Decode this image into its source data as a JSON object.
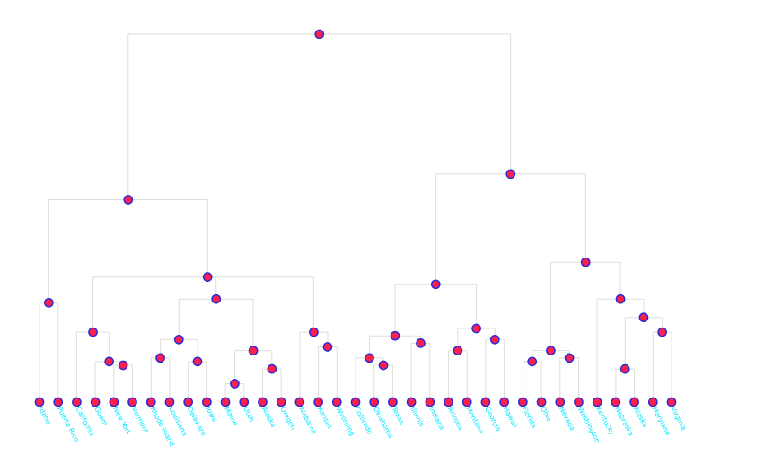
{
  "colors": {
    "link": "#dddddd",
    "node_fill": "#ff1f4b",
    "node_stroke": "#2b2bd6",
    "label": "#00e5ff"
  },
  "tree": {
    "h": 1.0,
    "children": [
      {
        "h": 0.55,
        "children": [
          {
            "h": 0.27,
            "children": [
              {
                "name": "Idaho",
                "h": 0
              },
              {
                "name": "Puerto Rico",
                "h": 0
              }
            ]
          },
          {
            "h": 0.34,
            "children": [
              {
                "h": 0.19,
                "children": [
                  {
                    "name": "California",
                    "h": 0
                  },
                  {
                    "h": 0.11,
                    "children": [
                      {
                        "name": "Guam",
                        "h": 0
                      },
                      {
                        "h": 0.1,
                        "children": [
                          {
                            "name": "New York",
                            "h": 0
                          },
                          {
                            "name": "Vermont",
                            "h": 0
                          }
                        ]
                      }
                    ]
                  }
                ]
              },
              {
                "h": 0.28,
                "children": [
                  {
                    "h": 0.17,
                    "children": [
                      {
                        "h": 0.12,
                        "children": [
                          {
                            "name": "Rhode Island",
                            "h": 0
                          },
                          {
                            "name": "Louisiana",
                            "h": 0
                          }
                        ]
                      },
                      {
                        "h": 0.11,
                        "children": [
                          {
                            "name": "Delaware",
                            "h": 0
                          },
                          {
                            "name": "Iowa",
                            "h": 0
                          }
                        ]
                      }
                    ]
                  },
                  {
                    "h": 0.14,
                    "children": [
                      {
                        "h": 0.05,
                        "children": [
                          {
                            "name": "Maine",
                            "h": 0
                          },
                          {
                            "name": "Utah",
                            "h": 0
                          }
                        ]
                      },
                      {
                        "h": 0.09,
                        "children": [
                          {
                            "name": "Alaska",
                            "h": 0
                          },
                          {
                            "name": "Oregon",
                            "h": 0
                          }
                        ]
                      }
                    ]
                  }
                ]
              },
              {
                "h": 0.19,
                "children": [
                  {
                    "name": "Alabama",
                    "h": 0
                  },
                  {
                    "h": 0.15,
                    "children": [
                      {
                        "name": "Kansas",
                        "h": 0
                      },
                      {
                        "name": "Wyoming",
                        "h": 0
                      }
                    ]
                  }
                ]
              }
            ]
          }
        ]
      },
      {
        "h": 0.62,
        "children": [
          {
            "h": 0.32,
            "children": [
              {
                "h": 0.18,
                "children": [
                  {
                    "h": 0.12,
                    "children": [
                      {
                        "name": "Colorado",
                        "h": 0
                      },
                      {
                        "h": 0.1,
                        "children": [
                          {
                            "name": "Oklahoma",
                            "h": 0
                          },
                          {
                            "name": "Texas",
                            "h": 0
                          }
                        ]
                      }
                    ]
                  },
                  {
                    "h": 0.16,
                    "children": [
                      {
                        "name": "Illinois",
                        "h": 0
                      },
                      {
                        "name": "Indiana",
                        "h": 0
                      }
                    ]
                  }
                ]
              },
              {
                "h": 0.2,
                "children": [
                  {
                    "h": 0.14,
                    "children": [
                      {
                        "name": "Arizona",
                        "h": 0
                      },
                      {
                        "name": "Montana",
                        "h": 0
                      }
                    ]
                  },
                  {
                    "h": 0.17,
                    "children": [
                      {
                        "name": "Georgia",
                        "h": 0
                      },
                      {
                        "name": "Hawaii",
                        "h": 0
                      }
                    ]
                  }
                ]
              }
            ]
          },
          {
            "h": 0.38,
            "children": [
              {
                "h": 0.14,
                "children": [
                  {
                    "h": 0.11,
                    "children": [
                      {
                        "name": "Florida",
                        "h": 0
                      },
                      {
                        "name": "Ohio",
                        "h": 0
                      }
                    ]
                  },
                  {
                    "h": 0.12,
                    "children": [
                      {
                        "name": "Nevada",
                        "h": 0
                      },
                      {
                        "name": "Washington",
                        "h": 0
                      }
                    ]
                  }
                ]
              },
              {
                "h": 0.28,
                "children": [
                  {
                    "name": "Kentucky",
                    "h": 0
                  },
                  {
                    "h": 0.23,
                    "children": [
                      {
                        "h": 0.09,
                        "children": [
                          {
                            "name": "Nebraska",
                            "h": 0
                          },
                          {
                            "name": "Alaska",
                            "h": 0
                          }
                        ]
                      },
                      {
                        "h": 0.19,
                        "children": [
                          {
                            "name": "Maryland",
                            "h": 0
                          },
                          {
                            "name": "Virginia",
                            "h": 0
                          }
                        ]
                      }
                    ]
                  }
                ]
              }
            ]
          }
        ]
      }
    ]
  }
}
